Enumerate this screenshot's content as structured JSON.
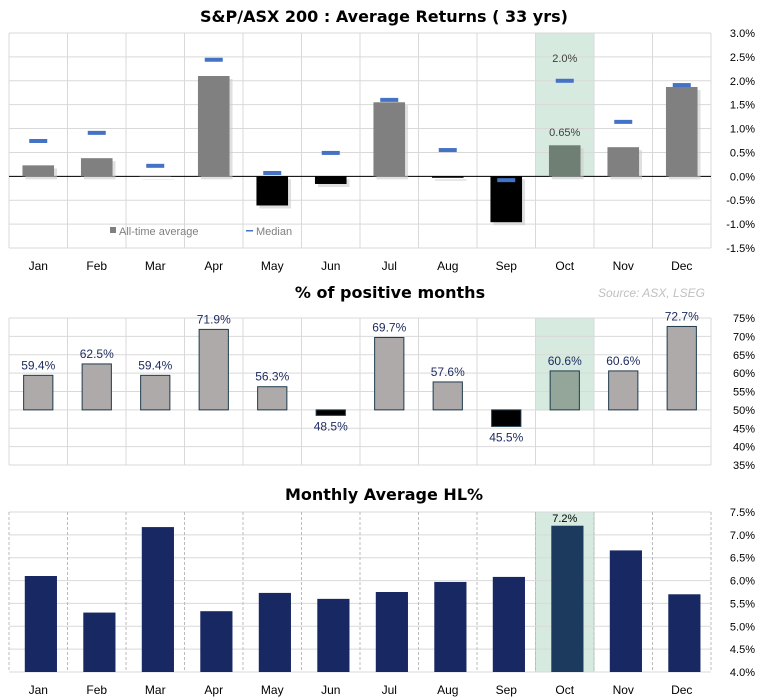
{
  "source_note": "Source: ASX, LSEG",
  "chart_data": [
    {
      "type": "bar",
      "title": "S&P/ASX 200 : Average Returns ( 33 yrs)",
      "categories": [
        "Jan",
        "Feb",
        "Mar",
        "Apr",
        "May",
        "Jun",
        "Jul",
        "Aug",
        "Sep",
        "Oct",
        "Nov",
        "Dec"
      ],
      "series": [
        {
          "name": "All-time average",
          "values": [
            0.23,
            0.38,
            0.0,
            2.1,
            -0.61,
            -0.16,
            1.55,
            -0.03,
            -0.96,
            0.65,
            0.61,
            1.87
          ]
        },
        {
          "name": "Median",
          "values": [
            0.74,
            0.91,
            0.22,
            2.44,
            0.07,
            0.49,
            1.6,
            0.55,
            -0.08,
            2.0,
            1.14,
            1.91
          ]
        }
      ],
      "annotations": [
        "2.0%",
        "0.65%"
      ],
      "highlight": "Oct",
      "ylim": [
        -1.5,
        3.0
      ],
      "yticks": [
        "3.0%",
        "2.5%",
        "2.0%",
        "1.5%",
        "1.0%",
        "0.5%",
        "0.0%",
        "-0.5%",
        "-1.0%",
        "-1.5%"
      ],
      "grid": true,
      "legend": "bottom-left",
      "colors": {
        "positive": "#808080",
        "negative": "#000000",
        "median": "#4472c4",
        "highlight": "#d6eadf",
        "negative_tick": "#ff0000"
      }
    },
    {
      "type": "bar",
      "title": "% of positive months",
      "categories": [
        "Jan",
        "Feb",
        "Mar",
        "Apr",
        "May",
        "Jun",
        "Jul",
        "Aug",
        "Sep",
        "Oct",
        "Nov",
        "Dec"
      ],
      "values": [
        59.4,
        62.5,
        59.4,
        71.9,
        56.3,
        48.5,
        69.7,
        57.6,
        45.5,
        60.6,
        60.6,
        72.7
      ],
      "data_labels": [
        "59.4%",
        "62.5%",
        "59.4%",
        "71.9%",
        "56.3%",
        "48.5%",
        "69.7%",
        "57.6%",
        "45.5%",
        "60.6%",
        "60.6%",
        "72.7%"
      ],
      "baseline": 50,
      "highlight": "Oct",
      "ylim": [
        35,
        75
      ],
      "yticks": [
        "75%",
        "70%",
        "65%",
        "60%",
        "55%",
        "50%",
        "45%",
        "40%",
        "35%"
      ],
      "grid": true,
      "colors": {
        "positive": "#aeaaaa",
        "negative": "#000000",
        "border": "#1f3b4d"
      }
    },
    {
      "type": "bar",
      "title": "Monthly Average HL%",
      "categories": [
        "Jan",
        "Feb",
        "Mar",
        "Apr",
        "May",
        "Jun",
        "Jul",
        "Aug",
        "Sep",
        "Oct",
        "Nov",
        "Dec"
      ],
      "values": [
        6.1,
        5.3,
        7.17,
        5.33,
        5.73,
        5.6,
        5.75,
        5.97,
        6.08,
        7.2,
        6.66,
        5.7
      ],
      "annotations": [
        "7.2%"
      ],
      "highlight": "Oct",
      "ylim": [
        4.0,
        7.5
      ],
      "yticks": [
        "7.5%",
        "7.0%",
        "6.5%",
        "6.0%",
        "5.5%",
        "5.0%",
        "4.5%",
        "4.0%"
      ],
      "grid": true,
      "colors": {
        "bar": "#172862",
        "highlight_bar": "#1c3a5e"
      }
    }
  ]
}
